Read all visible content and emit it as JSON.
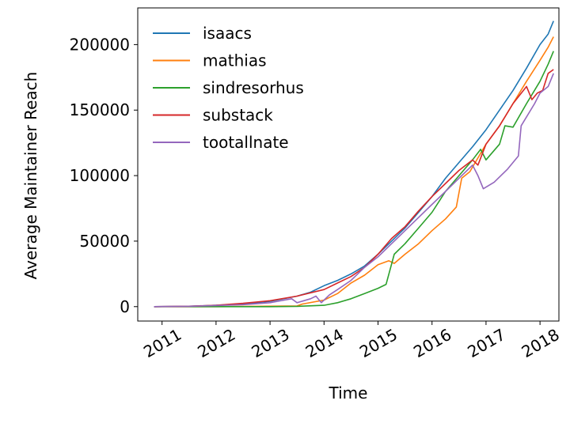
{
  "chart_data": {
    "type": "line",
    "xlabel": "Time",
    "ylabel": "Average Maintainer Reach",
    "xlim": [
      2010.55,
      2018.35
    ],
    "ylim": [
      -11000,
      228000
    ],
    "x_ticks": [
      2011,
      2012,
      2013,
      2014,
      2015,
      2016,
      2017,
      2018
    ],
    "x_tick_labels": [
      "2011",
      "2012",
      "2013",
      "2014",
      "2015",
      "2016",
      "2017",
      "2018"
    ],
    "y_ticks": [
      0,
      50000,
      100000,
      150000,
      200000
    ],
    "y_tick_labels": [
      "0",
      "50000",
      "100000",
      "150000",
      "200000"
    ],
    "grid": false,
    "legend_position": "top-left",
    "series": [
      {
        "name": "isaacs",
        "color": "#1f77b4",
        "points": [
          [
            2010.85,
            0
          ],
          [
            2011.5,
            300
          ],
          [
            2012.0,
            1000
          ],
          [
            2012.5,
            2000
          ],
          [
            2013.0,
            4000
          ],
          [
            2013.5,
            8000
          ],
          [
            2013.75,
            11000
          ],
          [
            2014.0,
            16000
          ],
          [
            2014.25,
            20000
          ],
          [
            2014.5,
            25000
          ],
          [
            2014.75,
            31000
          ],
          [
            2015.0,
            40000
          ],
          [
            2015.25,
            50000
          ],
          [
            2015.5,
            60000
          ],
          [
            2015.75,
            72000
          ],
          [
            2016.0,
            84000
          ],
          [
            2016.25,
            98000
          ],
          [
            2016.5,
            110000
          ],
          [
            2016.75,
            122000
          ],
          [
            2017.0,
            135000
          ],
          [
            2017.25,
            150000
          ],
          [
            2017.5,
            165000
          ],
          [
            2017.75,
            182000
          ],
          [
            2018.0,
            200000
          ],
          [
            2018.15,
            208000
          ],
          [
            2018.25,
            218000
          ]
        ]
      },
      {
        "name": "mathias",
        "color": "#ff7f0e",
        "points": [
          [
            2010.85,
            0
          ],
          [
            2012.0,
            0
          ],
          [
            2013.5,
            500
          ],
          [
            2013.6,
            2000
          ],
          [
            2014.0,
            5000
          ],
          [
            2014.25,
            10000
          ],
          [
            2014.5,
            18000
          ],
          [
            2014.75,
            24000
          ],
          [
            2015.0,
            32000
          ],
          [
            2015.2,
            35000
          ],
          [
            2015.3,
            33000
          ],
          [
            2015.5,
            40000
          ],
          [
            2015.75,
            48000
          ],
          [
            2016.0,
            58000
          ],
          [
            2016.25,
            67000
          ],
          [
            2016.45,
            76000
          ],
          [
            2016.55,
            98000
          ],
          [
            2016.7,
            103000
          ],
          [
            2016.8,
            110000
          ],
          [
            2017.0,
            124000
          ],
          [
            2017.25,
            138000
          ],
          [
            2017.5,
            155000
          ],
          [
            2017.75,
            172000
          ],
          [
            2018.0,
            188000
          ],
          [
            2018.15,
            198000
          ],
          [
            2018.25,
            206000
          ]
        ]
      },
      {
        "name": "sindresorhus",
        "color": "#2ca02c",
        "points": [
          [
            2010.85,
            0
          ],
          [
            2013.0,
            0
          ],
          [
            2013.5,
            200
          ],
          [
            2014.0,
            1000
          ],
          [
            2014.25,
            3000
          ],
          [
            2014.5,
            6000
          ],
          [
            2014.75,
            10000
          ],
          [
            2015.0,
            14000
          ],
          [
            2015.15,
            17000
          ],
          [
            2015.3,
            40000
          ],
          [
            2015.5,
            48000
          ],
          [
            2015.75,
            60000
          ],
          [
            2016.0,
            72000
          ],
          [
            2016.25,
            88000
          ],
          [
            2016.5,
            100000
          ],
          [
            2016.75,
            112000
          ],
          [
            2016.9,
            120000
          ],
          [
            2017.0,
            112000
          ],
          [
            2017.25,
            124000
          ],
          [
            2017.35,
            138000
          ],
          [
            2017.5,
            137000
          ],
          [
            2017.75,
            155000
          ],
          [
            2018.0,
            172000
          ],
          [
            2018.15,
            185000
          ],
          [
            2018.25,
            195000
          ]
        ]
      },
      {
        "name": "substack",
        "color": "#d62728",
        "points": [
          [
            2010.85,
            0
          ],
          [
            2011.5,
            300
          ],
          [
            2012.0,
            1000
          ],
          [
            2012.5,
            2500
          ],
          [
            2013.0,
            4500
          ],
          [
            2013.5,
            8000
          ],
          [
            2014.0,
            13000
          ],
          [
            2014.25,
            18000
          ],
          [
            2014.5,
            23000
          ],
          [
            2014.75,
            30000
          ],
          [
            2015.0,
            40000
          ],
          [
            2015.25,
            52000
          ],
          [
            2015.5,
            61000
          ],
          [
            2015.75,
            73000
          ],
          [
            2016.0,
            84000
          ],
          [
            2016.25,
            94000
          ],
          [
            2016.5,
            104000
          ],
          [
            2016.75,
            112000
          ],
          [
            2016.85,
            108000
          ],
          [
            2017.0,
            124000
          ],
          [
            2017.25,
            138000
          ],
          [
            2017.5,
            155000
          ],
          [
            2017.75,
            168000
          ],
          [
            2017.85,
            158000
          ],
          [
            2017.95,
            163000
          ],
          [
            2018.05,
            165000
          ],
          [
            2018.15,
            178000
          ],
          [
            2018.25,
            181000
          ]
        ]
      },
      {
        "name": "tootallnate",
        "color": "#9467bd",
        "points": [
          [
            2010.85,
            0
          ],
          [
            2011.5,
            200
          ],
          [
            2012.0,
            800
          ],
          [
            2012.5,
            1500
          ],
          [
            2013.0,
            3000
          ],
          [
            2013.4,
            6000
          ],
          [
            2013.5,
            3000
          ],
          [
            2013.75,
            6000
          ],
          [
            2013.85,
            8000
          ],
          [
            2013.95,
            3000
          ],
          [
            2014.1,
            9000
          ],
          [
            2014.25,
            13000
          ],
          [
            2014.5,
            20000
          ],
          [
            2014.75,
            30000
          ],
          [
            2015.0,
            38000
          ],
          [
            2015.25,
            48000
          ],
          [
            2015.5,
            58000
          ],
          [
            2015.75,
            68000
          ],
          [
            2016.0,
            78000
          ],
          [
            2016.25,
            88000
          ],
          [
            2016.5,
            98000
          ],
          [
            2016.75,
            108000
          ],
          [
            2016.85,
            100000
          ],
          [
            2016.95,
            90000
          ],
          [
            2017.15,
            95000
          ],
          [
            2017.4,
            105000
          ],
          [
            2017.6,
            115000
          ],
          [
            2017.65,
            138000
          ],
          [
            2017.9,
            155000
          ],
          [
            2018.0,
            163000
          ],
          [
            2018.15,
            168000
          ],
          [
            2018.25,
            178000
          ]
        ]
      }
    ]
  }
}
